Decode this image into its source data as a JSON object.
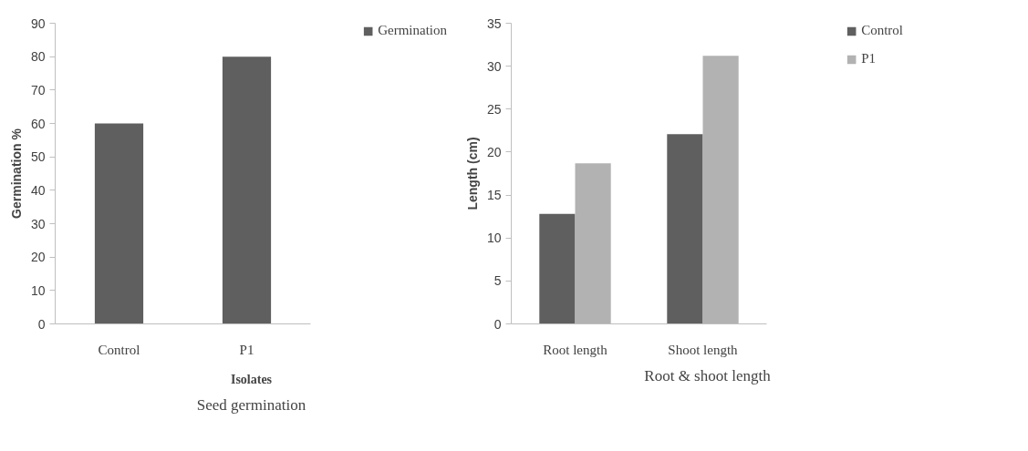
{
  "chart_data": [
    {
      "type": "bar",
      "title": "Seed germination",
      "xlabel": "Isolates",
      "ylabel": "Germination %",
      "categories": [
        "Control",
        "P1"
      ],
      "series": [
        {
          "name": "Germination",
          "color": "#5f5f5f",
          "values": [
            60,
            80
          ]
        }
      ],
      "ylim": [
        0,
        90
      ],
      "yticks": [
        0,
        10,
        20,
        30,
        40,
        50,
        60,
        70,
        80,
        90
      ],
      "legend": "right",
      "grid": false
    },
    {
      "type": "bar",
      "title": "Root & shoot length",
      "ylabel": "Length (cm)",
      "categories": [
        "Root length",
        "Shoot length"
      ],
      "series": [
        {
          "name": "Control",
          "color": "#5f5f5f",
          "values": [
            12.8,
            22.1
          ]
        },
        {
          "name": "P1",
          "color": "#b2b2b2",
          "values": [
            18.7,
            31.2
          ]
        }
      ],
      "ylim": [
        0,
        35
      ],
      "yticks": [
        0,
        5,
        10,
        15,
        20,
        25,
        30,
        35
      ],
      "legend": "right",
      "grid": false
    }
  ]
}
